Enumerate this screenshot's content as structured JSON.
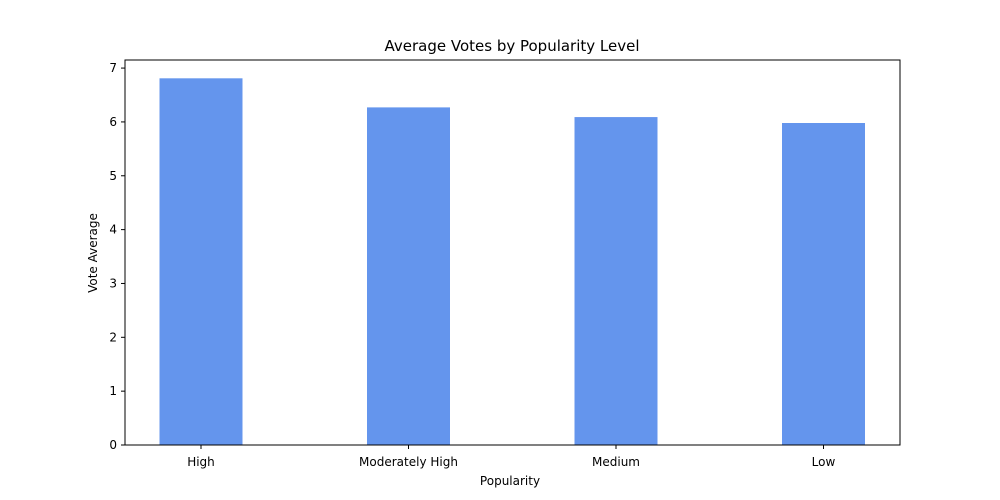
{
  "chart_data": {
    "type": "bar",
    "title": "Average Votes by Popularity Level",
    "xlabel": "Popularity",
    "ylabel": "Vote Average",
    "categories": [
      "High",
      "Moderately High",
      "Medium",
      "Low"
    ],
    "values": [
      6.81,
      6.27,
      6.09,
      5.98
    ],
    "ylim": [
      0,
      7
    ],
    "yticks": [
      "0",
      "1",
      "2",
      "3",
      "4",
      "5",
      "6",
      "7"
    ],
    "bar_color": "#6495ED",
    "grid": false,
    "legend": "none"
  }
}
